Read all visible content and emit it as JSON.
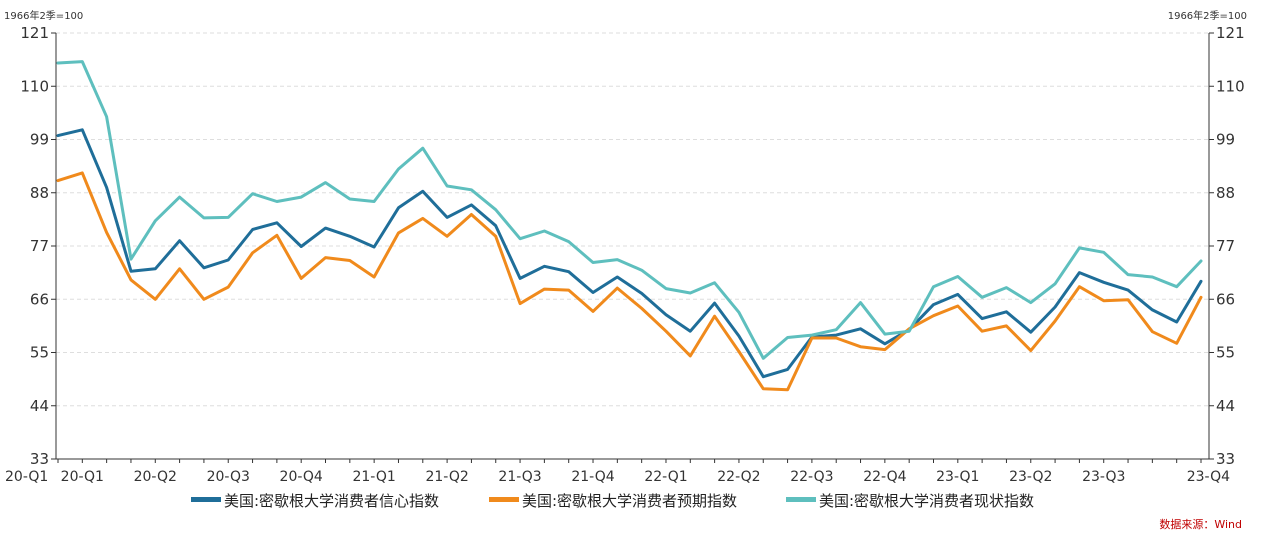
{
  "chart_data": {
    "type": "line",
    "unit_left": "1966年2季=100",
    "unit_right": "1966年2季=100",
    "ylim": [
      33,
      121
    ],
    "yticks": [
      33,
      44,
      55,
      66,
      77,
      88,
      99,
      110,
      121
    ],
    "grid": true,
    "legend_position": "bottom",
    "x_tick_labels": [
      "20-Q1",
      "20-Q1",
      "20-Q2",
      "20-Q3",
      "20-Q4",
      "21-Q1",
      "21-Q2",
      "21-Q3",
      "21-Q4",
      "22-Q1",
      "22-Q2",
      "22-Q3",
      "22-Q4",
      "23-Q1",
      "23-Q2",
      "23-Q3",
      "23-Q4"
    ],
    "x_tick_positions": [
      0,
      1,
      4,
      7,
      10,
      13,
      16,
      19,
      22,
      25,
      28,
      31,
      34,
      37,
      40,
      43,
      46
    ],
    "x_count": 48,
    "series": [
      {
        "name": "美国:密歇根大学消费者信心指数",
        "color": "#1f6e99",
        "values": [
          99.8,
          101.0,
          89.1,
          71.8,
          72.3,
          78.1,
          72.5,
          74.1,
          80.4,
          81.8,
          76.9,
          80.7,
          79.0,
          76.8,
          84.9,
          88.3,
          82.9,
          85.5,
          81.2,
          70.3,
          72.8,
          71.7,
          67.4,
          70.6,
          67.2,
          62.8,
          59.4,
          65.2,
          58.4,
          50.0,
          51.5,
          58.2,
          58.6,
          59.9,
          56.8,
          59.7,
          64.9,
          67.0,
          62.0,
          63.4,
          59.2,
          64.4,
          71.5,
          69.5,
          67.9,
          63.8,
          61.3,
          69.7
        ]
      },
      {
        "name": "美国:密歇根大学消费者预期指数",
        "color": "#f08a1c",
        "values": [
          90.5,
          92.1,
          79.8,
          70.0,
          66.0,
          72.3,
          66.0,
          68.5,
          75.6,
          79.2,
          70.3,
          74.6,
          74.0,
          70.6,
          79.7,
          82.7,
          79.0,
          83.5,
          79.0,
          65.1,
          68.1,
          67.9,
          63.5,
          68.3,
          64.1,
          59.4,
          54.3,
          62.5,
          55.2,
          47.5,
          47.3,
          58.0,
          58.0,
          56.2,
          55.6,
          59.9,
          62.6,
          64.6,
          59.4,
          60.5,
          55.4,
          61.5,
          68.6,
          65.7,
          65.9,
          59.3,
          56.9,
          66.4
        ]
      },
      {
        "name": "美国:密歇根大学消费者现状指数",
        "color": "#5ebfbe",
        "values": [
          114.8,
          115.1,
          103.7,
          74.3,
          82.2,
          87.1,
          82.8,
          82.9,
          87.8,
          86.2,
          87.1,
          90.1,
          86.7,
          86.2,
          92.9,
          97.2,
          89.4,
          88.6,
          84.5,
          78.5,
          80.1,
          77.9,
          73.6,
          74.2,
          72.0,
          68.2,
          67.3,
          69.4,
          63.3,
          53.8,
          58.1,
          58.6,
          59.7,
          65.3,
          58.8,
          59.4,
          68.6,
          70.7,
          66.4,
          68.4,
          65.3,
          69.2,
          76.6,
          75.7,
          71.1,
          70.6,
          68.6,
          73.9
        ]
      }
    ],
    "source": "数据来源：Wind"
  }
}
